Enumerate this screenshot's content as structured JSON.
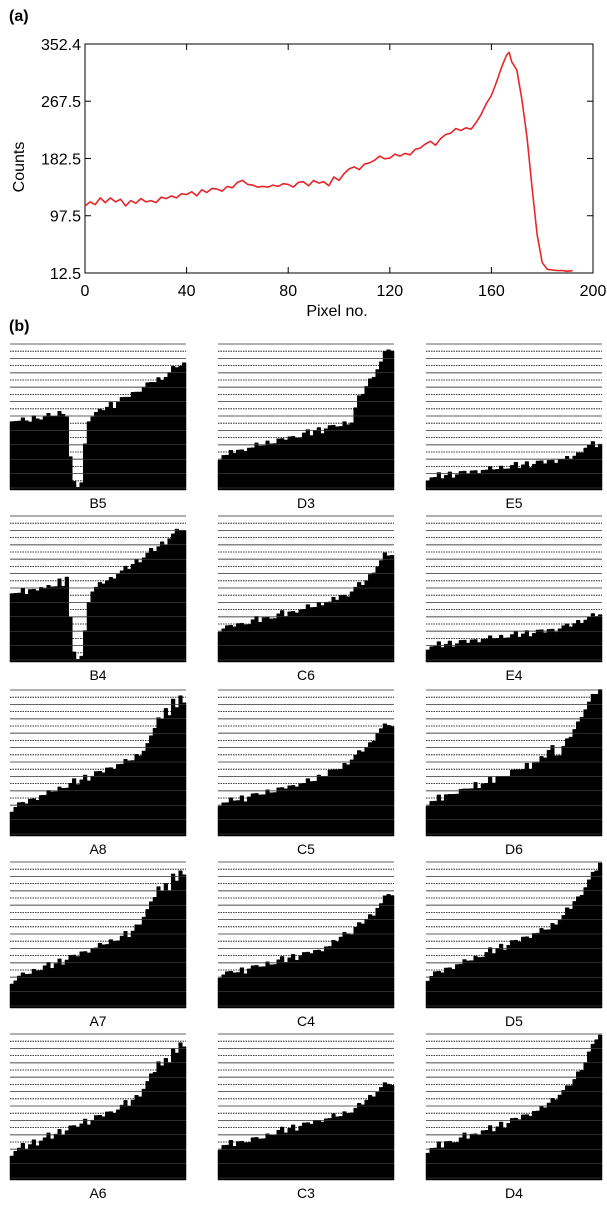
{
  "panel_labels": {
    "a": "(a)",
    "b": "(b)"
  },
  "colors": {
    "line": "#e8262a",
    "axis": "#000000",
    "histogram_fill": "#000000",
    "gridline": "#000000"
  },
  "chart_data": [
    {
      "type": "line",
      "panel": "(a)",
      "xlabel": "Pixel no.",
      "ylabel": "Counts",
      "xlim": [
        0,
        200
      ],
      "ylim": [
        12.5,
        352.4
      ],
      "xticks": [
        0,
        40,
        80,
        120,
        160,
        200
      ],
      "yticks": [
        12.5,
        97.5,
        182.5,
        267.5,
        352.4
      ],
      "ytick_labels": [
        "12.5",
        "97.5",
        "182.5",
        "267.5",
        "352.4"
      ],
      "grid": false,
      "series": [
        {
          "color": "#e8262a",
          "x": [
            0,
            2,
            4,
            6,
            8,
            10,
            12,
            14,
            16,
            18,
            20,
            22,
            24,
            26,
            28,
            30,
            32,
            34,
            36,
            38,
            40,
            42,
            44,
            46,
            48,
            50,
            52,
            54,
            56,
            58,
            60,
            62,
            64,
            66,
            68,
            70,
            72,
            74,
            76,
            78,
            80,
            82,
            84,
            86,
            88,
            90,
            92,
            94,
            96,
            98,
            100,
            102,
            104,
            106,
            108,
            110,
            112,
            114,
            116,
            118,
            120,
            122,
            124,
            126,
            128,
            130,
            132,
            134,
            136,
            138,
            140,
            142,
            144,
            146,
            148,
            150,
            152,
            154,
            156,
            158,
            160,
            162,
            164,
            166,
            167,
            168,
            170,
            172,
            174,
            176,
            178,
            180,
            182,
            184,
            186,
            188,
            190,
            192
          ],
          "y": [
            112,
            118,
            114,
            124,
            117,
            124,
            118,
            122,
            112,
            120,
            116,
            123,
            118,
            120,
            117,
            125,
            123,
            127,
            124,
            130,
            129,
            133,
            127,
            136,
            132,
            138,
            137,
            134,
            141,
            139,
            147,
            150,
            144,
            143,
            140,
            141,
            140,
            143,
            141,
            145,
            144,
            140,
            147,
            148,
            142,
            150,
            146,
            148,
            142,
            155,
            150,
            160,
            167,
            170,
            166,
            174,
            176,
            180,
            186,
            182,
            183,
            189,
            186,
            190,
            188,
            196,
            198,
            204,
            208,
            202,
            212,
            218,
            220,
            227,
            224,
            228,
            226,
            236,
            248,
            264,
            276,
            296,
            318,
            336,
            340,
            326,
            314,
            270,
            214,
            140,
            70,
            28,
            18,
            17,
            16,
            16,
            15,
            16
          ]
        }
      ]
    },
    {
      "type": "bar",
      "panel": "(b)",
      "subplots": [
        {
          "label": "B5",
          "profile": [
            0.48,
            0.47,
            0.46,
            0.47,
            0.48,
            0.46,
            0.49,
            0.5,
            0.48,
            0.49,
            0.5,
            0.51,
            0.5,
            0.52,
            0.53,
            0.5,
            0.22,
            0.04,
            0.03,
            0.05,
            0.3,
            0.48,
            0.5,
            0.52,
            0.53,
            0.55,
            0.56,
            0.58,
            0.57,
            0.6,
            0.62,
            0.61,
            0.64,
            0.66,
            0.65,
            0.68,
            0.7,
            0.72,
            0.71,
            0.74,
            0.76,
            0.73,
            0.78,
            0.8,
            0.83,
            0.81,
            0.85,
            0.86
          ]
        },
        {
          "label": "D3",
          "profile": [
            0.22,
            0.24,
            0.23,
            0.25,
            0.26,
            0.27,
            0.26,
            0.28,
            0.29,
            0.28,
            0.3,
            0.31,
            0.3,
            0.32,
            0.33,
            0.32,
            0.34,
            0.33,
            0.35,
            0.36,
            0.35,
            0.37,
            0.36,
            0.38,
            0.39,
            0.38,
            0.4,
            0.41,
            0.4,
            0.42,
            0.43,
            0.42,
            0.44,
            0.43,
            0.45,
            0.46,
            0.46,
            0.55,
            0.62,
            0.66,
            0.7,
            0.74,
            0.78,
            0.82,
            0.86,
            0.92,
            0.96,
            0.94
          ]
        },
        {
          "label": "E5",
          "profile": [
            0.08,
            0.09,
            0.08,
            0.1,
            0.09,
            0.1,
            0.11,
            0.1,
            0.11,
            0.12,
            0.11,
            0.12,
            0.13,
            0.12,
            0.13,
            0.14,
            0.13,
            0.14,
            0.15,
            0.14,
            0.15,
            0.16,
            0.15,
            0.16,
            0.17,
            0.16,
            0.17,
            0.18,
            0.17,
            0.18,
            0.19,
            0.18,
            0.19,
            0.2,
            0.19,
            0.2,
            0.21,
            0.2,
            0.21,
            0.22,
            0.23,
            0.24,
            0.27,
            0.29,
            0.3,
            0.31,
            0.3,
            0.31
          ]
        },
        {
          "label": "B4",
          "profile": [
            0.48,
            0.47,
            0.46,
            0.48,
            0.47,
            0.49,
            0.48,
            0.5,
            0.51,
            0.49,
            0.5,
            0.52,
            0.51,
            0.55,
            0.53,
            0.58,
            0.3,
            0.05,
            0.03,
            0.04,
            0.2,
            0.42,
            0.48,
            0.5,
            0.52,
            0.54,
            0.55,
            0.56,
            0.58,
            0.6,
            0.61,
            0.63,
            0.64,
            0.66,
            0.68,
            0.69,
            0.71,
            0.73,
            0.75,
            0.76,
            0.78,
            0.8,
            0.81,
            0.84,
            0.86,
            0.88,
            0.9,
            0.89
          ]
        },
        {
          "label": "C6",
          "profile": [
            0.22,
            0.23,
            0.24,
            0.23,
            0.25,
            0.26,
            0.25,
            0.27,
            0.26,
            0.28,
            0.29,
            0.28,
            0.3,
            0.29,
            0.31,
            0.3,
            0.32,
            0.33,
            0.32,
            0.34,
            0.33,
            0.35,
            0.36,
            0.35,
            0.37,
            0.38,
            0.37,
            0.39,
            0.4,
            0.41,
            0.4,
            0.42,
            0.43,
            0.45,
            0.44,
            0.46,
            0.48,
            0.5,
            0.52,
            0.53,
            0.55,
            0.58,
            0.62,
            0.65,
            0.68,
            0.72,
            0.73,
            0.72
          ]
        },
        {
          "label": "E4",
          "profile": [
            0.1,
            0.11,
            0.1,
            0.12,
            0.11,
            0.12,
            0.13,
            0.12,
            0.13,
            0.14,
            0.13,
            0.14,
            0.15,
            0.14,
            0.15,
            0.16,
            0.15,
            0.16,
            0.17,
            0.16,
            0.17,
            0.18,
            0.17,
            0.18,
            0.19,
            0.18,
            0.19,
            0.2,
            0.19,
            0.2,
            0.21,
            0.2,
            0.21,
            0.22,
            0.21,
            0.22,
            0.23,
            0.24,
            0.24,
            0.25,
            0.26,
            0.27,
            0.28,
            0.29,
            0.3,
            0.31,
            0.32,
            0.32
          ]
        },
        {
          "label": "A8",
          "profile": [
            0.18,
            0.2,
            0.22,
            0.21,
            0.23,
            0.25,
            0.24,
            0.26,
            0.28,
            0.27,
            0.29,
            0.31,
            0.3,
            0.32,
            0.34,
            0.33,
            0.35,
            0.37,
            0.36,
            0.38,
            0.4,
            0.39,
            0.41,
            0.43,
            0.42,
            0.44,
            0.46,
            0.45,
            0.47,
            0.49,
            0.48,
            0.5,
            0.52,
            0.51,
            0.54,
            0.56,
            0.58,
            0.62,
            0.66,
            0.74,
            0.8,
            0.78,
            0.88,
            0.82,
            0.92,
            0.85,
            0.96,
            0.9
          ]
        },
        {
          "label": "C5",
          "profile": [
            0.22,
            0.23,
            0.22,
            0.24,
            0.25,
            0.24,
            0.26,
            0.25,
            0.27,
            0.28,
            0.27,
            0.29,
            0.28,
            0.3,
            0.31,
            0.3,
            0.32,
            0.31,
            0.33,
            0.34,
            0.33,
            0.35,
            0.36,
            0.35,
            0.37,
            0.38,
            0.37,
            0.4,
            0.42,
            0.41,
            0.44,
            0.43,
            0.46,
            0.45,
            0.48,
            0.5,
            0.52,
            0.54,
            0.56,
            0.58,
            0.6,
            0.62,
            0.66,
            0.7,
            0.72,
            0.74,
            0.76,
            0.74
          ]
        },
        {
          "label": "D6",
          "profile": [
            0.22,
            0.24,
            0.23,
            0.26,
            0.25,
            0.28,
            0.27,
            0.3,
            0.29,
            0.31,
            0.3,
            0.33,
            0.32,
            0.35,
            0.34,
            0.36,
            0.35,
            0.38,
            0.37,
            0.4,
            0.39,
            0.42,
            0.41,
            0.44,
            0.43,
            0.46,
            0.45,
            0.48,
            0.47,
            0.5,
            0.49,
            0.52,
            0.54,
            0.58,
            0.6,
            0.56,
            0.55,
            0.6,
            0.64,
            0.68,
            0.72,
            0.76,
            0.82,
            0.86,
            0.9,
            0.94,
            0.97,
            0.99
          ]
        },
        {
          "label": "A7",
          "profile": [
            0.18,
            0.19,
            0.21,
            0.22,
            0.24,
            0.23,
            0.25,
            0.27,
            0.26,
            0.28,
            0.29,
            0.28,
            0.3,
            0.32,
            0.31,
            0.33,
            0.35,
            0.34,
            0.36,
            0.38,
            0.37,
            0.39,
            0.41,
            0.4,
            0.42,
            0.44,
            0.43,
            0.45,
            0.47,
            0.46,
            0.48,
            0.5,
            0.49,
            0.52,
            0.55,
            0.58,
            0.62,
            0.66,
            0.7,
            0.76,
            0.82,
            0.78,
            0.86,
            0.8,
            0.9,
            0.84,
            0.94,
            0.9
          ]
        },
        {
          "label": "C4",
          "profile": [
            0.22,
            0.23,
            0.24,
            0.23,
            0.25,
            0.24,
            0.26,
            0.25,
            0.27,
            0.28,
            0.27,
            0.29,
            0.28,
            0.3,
            0.31,
            0.3,
            0.32,
            0.33,
            0.32,
            0.34,
            0.35,
            0.34,
            0.36,
            0.37,
            0.36,
            0.38,
            0.39,
            0.38,
            0.4,
            0.42,
            0.41,
            0.44,
            0.46,
            0.48,
            0.5,
            0.52,
            0.5,
            0.54,
            0.56,
            0.58,
            0.6,
            0.62,
            0.64,
            0.68,
            0.7,
            0.74,
            0.78,
            0.76
          ]
        },
        {
          "label": "D5",
          "profile": [
            0.2,
            0.22,
            0.24,
            0.23,
            0.25,
            0.27,
            0.26,
            0.28,
            0.3,
            0.29,
            0.31,
            0.33,
            0.32,
            0.34,
            0.36,
            0.35,
            0.37,
            0.39,
            0.38,
            0.4,
            0.42,
            0.41,
            0.43,
            0.45,
            0.44,
            0.46,
            0.48,
            0.47,
            0.49,
            0.51,
            0.5,
            0.52,
            0.54,
            0.53,
            0.56,
            0.58,
            0.6,
            0.62,
            0.66,
            0.68,
            0.72,
            0.74,
            0.78,
            0.82,
            0.86,
            0.9,
            0.94,
            0.98
          ]
        },
        {
          "label": "A6",
          "profile": [
            0.18,
            0.2,
            0.21,
            0.23,
            0.22,
            0.24,
            0.26,
            0.25,
            0.27,
            0.28,
            0.3,
            0.29,
            0.31,
            0.33,
            0.32,
            0.34,
            0.36,
            0.35,
            0.37,
            0.38,
            0.4,
            0.39,
            0.41,
            0.43,
            0.42,
            0.44,
            0.46,
            0.45,
            0.47,
            0.48,
            0.5,
            0.52,
            0.51,
            0.54,
            0.56,
            0.58,
            0.62,
            0.66,
            0.7,
            0.74,
            0.8,
            0.76,
            0.84,
            0.8,
            0.88,
            0.84,
            0.94,
            0.9
          ]
        },
        {
          "label": "C3",
          "profile": [
            0.22,
            0.24,
            0.23,
            0.25,
            0.24,
            0.26,
            0.25,
            0.27,
            0.26,
            0.28,
            0.27,
            0.29,
            0.28,
            0.3,
            0.32,
            0.31,
            0.33,
            0.34,
            0.33,
            0.35,
            0.36,
            0.35,
            0.37,
            0.38,
            0.37,
            0.39,
            0.4,
            0.39,
            0.41,
            0.42,
            0.41,
            0.43,
            0.44,
            0.43,
            0.45,
            0.47,
            0.46,
            0.48,
            0.5,
            0.52,
            0.54,
            0.56,
            0.58,
            0.6,
            0.62,
            0.64,
            0.66,
            0.64
          ]
        },
        {
          "label": "D4",
          "profile": [
            0.2,
            0.22,
            0.21,
            0.24,
            0.23,
            0.26,
            0.25,
            0.27,
            0.26,
            0.28,
            0.3,
            0.29,
            0.31,
            0.3,
            0.32,
            0.34,
            0.33,
            0.35,
            0.34,
            0.36,
            0.38,
            0.37,
            0.39,
            0.41,
            0.4,
            0.42,
            0.44,
            0.43,
            0.45,
            0.47,
            0.46,
            0.48,
            0.5,
            0.52,
            0.54,
            0.56,
            0.58,
            0.6,
            0.62,
            0.65,
            0.68,
            0.72,
            0.76,
            0.8,
            0.86,
            0.9,
            0.96,
            0.98
          ]
        }
      ]
    }
  ]
}
